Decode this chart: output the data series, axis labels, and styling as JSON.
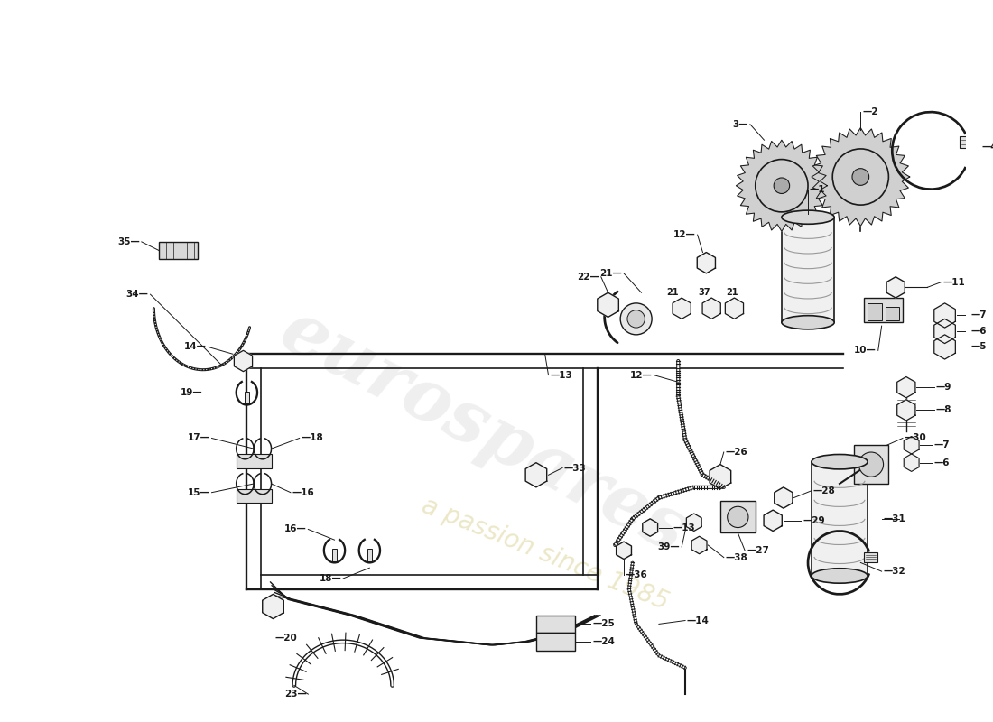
{
  "bg_color": "#ffffff",
  "lc": "#1a1a1a",
  "lw": 1.4,
  "figsize": [
    11.0,
    8.0
  ],
  "dpi": 100,
  "wm1_color": "#c8c8c8",
  "wm2_color": "#d8d090"
}
